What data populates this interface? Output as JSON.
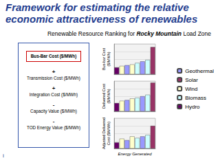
{
  "slide": {
    "title": "Framework for estimating the relative economic attractiveness of renewables",
    "subtitle": {
      "before": "Renewable Resource Ranking for ",
      "bold": "Rocky Mountain",
      "after": " Load Zone"
    },
    "framework": [
      {
        "op": null,
        "text": "Bus-Bar Cost ($/MWh)"
      },
      {
        "op": "+",
        "text": "Transmission Cost ($/MWh)"
      },
      {
        "op": "+",
        "text": "Integration Cost ($/MWh)"
      },
      {
        "op": "-",
        "text": "Capacity Value ($/MWh)"
      },
      {
        "op": "-",
        "text": "TOD Energy Value ($/MWh)"
      }
    ],
    "footer": "i"
  },
  "chart_data": [
    {
      "type": "bar",
      "y_label": [
        "Bus-bar Cost",
        "($/MWh)"
      ],
      "categories": [
        null,
        null,
        null,
        null,
        null,
        null,
        null,
        null
      ],
      "series": [
        {
          "name": "Geothermal",
          "color": "#9999ff",
          "values": [
            null,
            null,
            60,
            null,
            null,
            85,
            null,
            null
          ]
        },
        {
          "name": "Solar",
          "color": "#993366",
          "values": [
            null,
            null,
            null,
            null,
            null,
            null,
            null,
            180
          ]
        },
        {
          "name": "Wind",
          "color": "#ffffcc",
          "values": [
            null,
            55,
            null,
            65,
            null,
            null,
            null,
            null
          ]
        },
        {
          "name": "Biomass",
          "color": "#ccffff",
          "values": [
            null,
            null,
            null,
            null,
            75,
            null,
            95,
            null
          ]
        },
        {
          "name": "Hydro",
          "color": "#660066",
          "values": [
            45,
            null,
            null,
            null,
            null,
            null,
            null,
            null
          ]
        }
      ],
      "ylim": [
        0,
        200
      ],
      "yticks": [
        0,
        50,
        100,
        150,
        200
      ],
      "grid": true,
      "tick_labels": false,
      "stacked": true,
      "legend": "right"
    },
    {
      "type": "bar",
      "y_label": [
        "Delivered Cost",
        "($/MWh)"
      ],
      "categories": [
        null,
        null,
        null,
        null,
        null,
        null,
        null,
        null
      ],
      "series": [
        {
          "name": "Geothermal",
          "color": "#9999ff",
          "values": [
            null,
            null,
            75,
            null,
            null,
            100,
            null,
            null
          ]
        },
        {
          "name": "Solar",
          "color": "#993366",
          "values": [
            null,
            null,
            null,
            null,
            null,
            null,
            null,
            190
          ]
        },
        {
          "name": "Wind",
          "color": "#ffffcc",
          "values": [
            null,
            70,
            null,
            85,
            null,
            null,
            null,
            null
          ]
        },
        {
          "name": "Biomass",
          "color": "#ccffff",
          "values": [
            null,
            null,
            null,
            null,
            90,
            null,
            110,
            null
          ]
        },
        {
          "name": "Hydro",
          "color": "#660066",
          "values": [
            55,
            null,
            null,
            null,
            null,
            null,
            null,
            null
          ]
        }
      ],
      "ylim": [
        0,
        200
      ],
      "yticks": [
        0,
        50,
        100,
        150,
        200
      ],
      "grid": true,
      "tick_labels": false,
      "stacked": true
    },
    {
      "type": "bar",
      "y_label": [
        "Adjusted Delivered",
        "Cost ($/MWh)"
      ],
      "x_label": "Energy Generated",
      "categories": [
        null,
        null,
        null,
        null,
        null,
        null,
        null,
        null
      ],
      "series": [
        {
          "name": "Geothermal",
          "color": "#9999ff",
          "values": [
            null,
            null,
            55,
            null,
            null,
            80,
            null,
            null
          ]
        },
        {
          "name": "Solar",
          "color": "#993366",
          "values": [
            null,
            null,
            null,
            null,
            null,
            null,
            null,
            150
          ]
        },
        {
          "name": "Wind",
          "color": "#ffffcc",
          "values": [
            null,
            65,
            null,
            80,
            null,
            null,
            null,
            null
          ]
        },
        {
          "name": "Biomass",
          "color": "#ccffff",
          "values": [
            null,
            null,
            null,
            null,
            70,
            null,
            90,
            null
          ]
        },
        {
          "name": "Hydro",
          "color": "#660066",
          "values": [
            40,
            null,
            null,
            null,
            null,
            null,
            null,
            null
          ]
        }
      ],
      "ylim": [
        0,
        200
      ],
      "yticks": [
        0,
        50,
        100,
        150,
        200
      ],
      "grid": true,
      "tick_labels": false,
      "stacked": true
    }
  ]
}
